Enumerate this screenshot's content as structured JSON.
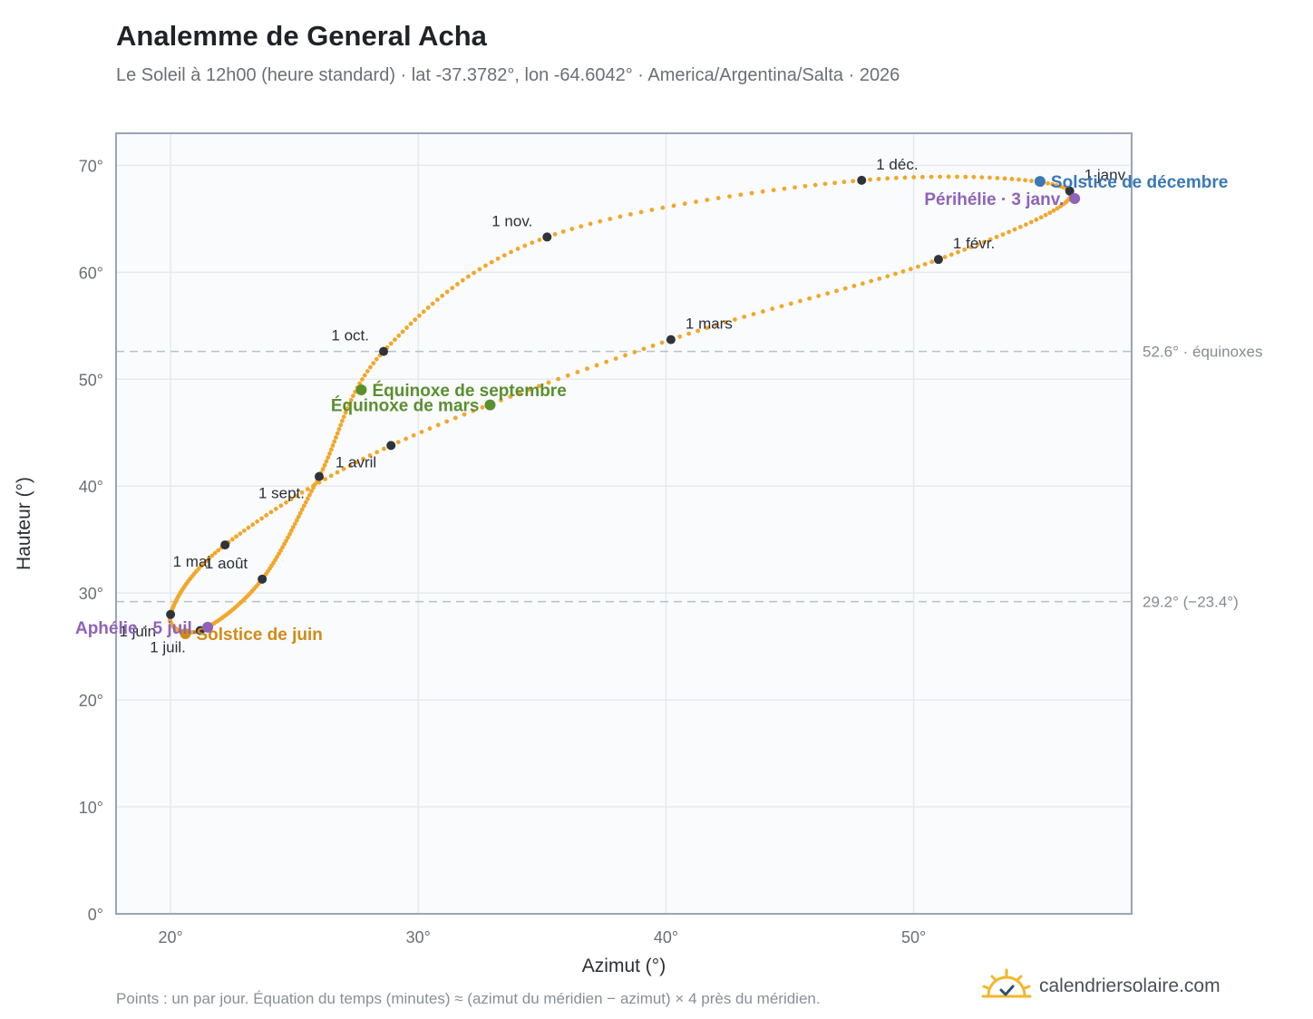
{
  "header": {
    "title": "Analemme de General Acha",
    "subtitle": "Le Soleil à 12h00 (heure standard) · lat -37.3782°, lon -64.6042° · America/Argentina/Salta · 2026"
  },
  "footer": {
    "note": "Points : un par jour. Équation du temps (minutes) ≈ (azimut du méridien − azimut) × 4 près du méridien.",
    "brand": "calendriersolaire.com"
  },
  "colors": {
    "curve": "#f2a72a",
    "month_marker": "#2f343b",
    "equinox": "#5a8f2e",
    "solstice_june": "#d08c16",
    "solstice_december": "#3a78b8",
    "apsis": "#8e63b8",
    "grid": "#e6e9ee",
    "plot_bg": "#f9fbfd",
    "frame": "#9aa5b4",
    "refline": "#b8c0ca"
  },
  "chart_data": {
    "type": "scatter",
    "title": "Analemme de General Acha",
    "xlabel": "Azimut (°)",
    "ylabel": "Hauteur (°)",
    "xlim": [
      17.8,
      58.8
    ],
    "ylim": [
      0,
      73
    ],
    "x_ticks": [
      {
        "value": 20,
        "label": "20°"
      },
      {
        "value": 30,
        "label": "30°"
      },
      {
        "value": 40,
        "label": "40°"
      },
      {
        "value": 50,
        "label": "50°"
      }
    ],
    "y_ticks": [
      {
        "value": 0,
        "label": "0°"
      },
      {
        "value": 10,
        "label": "10°"
      },
      {
        "value": 20,
        "label": "20°"
      },
      {
        "value": 30,
        "label": "30°"
      },
      {
        "value": 40,
        "label": "40°"
      },
      {
        "value": 50,
        "label": "50°"
      },
      {
        "value": 60,
        "label": "60°"
      },
      {
        "value": 70,
        "label": "70°"
      }
    ],
    "grid": true,
    "reference_lines": [
      {
        "y": 52.6,
        "label": "52.6° · équinoxes"
      },
      {
        "y": 29.2,
        "label": "29.2° (−23.4°)"
      }
    ],
    "month_points": [
      {
        "label": "1 janv.",
        "x": 56.3,
        "y": 67.6,
        "label_side": "upper-right"
      },
      {
        "label": "1 févr.",
        "x": 51.0,
        "y": 61.2,
        "label_side": "upper-right"
      },
      {
        "label": "1 mars",
        "x": 40.2,
        "y": 53.7,
        "label_side": "upper-right"
      },
      {
        "label": "1 avril",
        "x": 28.9,
        "y": 43.8,
        "label_side": "lower-left"
      },
      {
        "label": "1 mai",
        "x": 22.2,
        "y": 34.5,
        "label_side": "lower-left"
      },
      {
        "label": "1 juin",
        "x": 20.0,
        "y": 28.0,
        "label_side": "lower-left"
      },
      {
        "label": "1 juil.",
        "x": 21.2,
        "y": 26.5,
        "label_side": "lower-left"
      },
      {
        "label": "1 août",
        "x": 23.7,
        "y": 31.3,
        "label_side": "upper-left"
      },
      {
        "label": "1 sept.",
        "x": 26.0,
        "y": 40.9,
        "label_side": "lower-left"
      },
      {
        "label": "1 oct.",
        "x": 28.6,
        "y": 52.6,
        "label_side": "upper-left"
      },
      {
        "label": "1 nov.",
        "x": 35.2,
        "y": 63.3,
        "label_side": "upper-left"
      },
      {
        "label": "1 déc.",
        "x": 47.9,
        "y": 68.6,
        "label_side": "upper-right"
      }
    ],
    "events": [
      {
        "label": "Équinoxe de mars",
        "x": 32.9,
        "y": 47.6,
        "kind": "equinox",
        "label_side": "left"
      },
      {
        "label": "Équinoxe de septembre",
        "x": 27.7,
        "y": 49.0,
        "kind": "equinox",
        "label_side": "right"
      },
      {
        "label": "Solstice de juin",
        "x": 20.6,
        "y": 26.2,
        "kind": "solstice_june",
        "label_side": "right"
      },
      {
        "label": "Solstice de décembre",
        "x": 55.1,
        "y": 68.5,
        "kind": "solstice_december",
        "label_side": "right"
      },
      {
        "label": "Périhélie · 3 janv.",
        "x": 56.5,
        "y": 66.9,
        "kind": "apsis",
        "label_side": "left"
      },
      {
        "label": "Aphélie · 5 juil.",
        "x": 21.5,
        "y": 26.8,
        "kind": "apsis",
        "label_side": "left"
      }
    ]
  }
}
